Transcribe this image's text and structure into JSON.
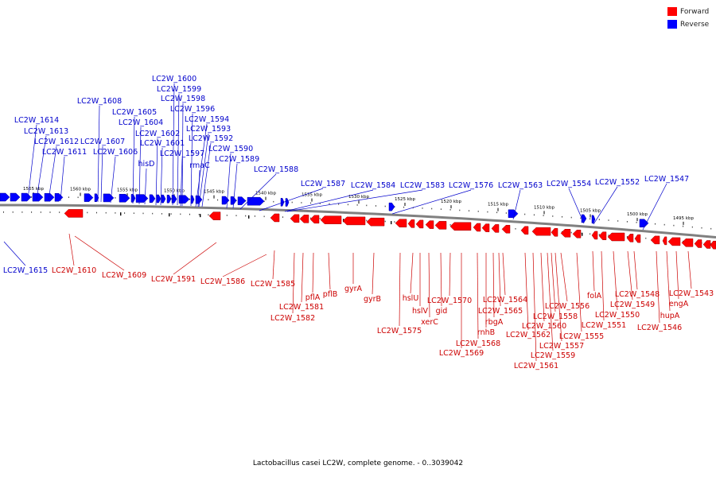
{
  "colors": {
    "forward": "#ff0000",
    "reverse": "#0000ff",
    "backbone": "#808080",
    "forward_label": "#cc0000",
    "reverse_label": "#0000cc"
  },
  "legend": {
    "forward": "Forward",
    "reverse": "Reverse"
  },
  "caption": "Lactobacillus casei LC2W, complete genome. - 0..3039042",
  "scale_ticks": [
    "1565 kbp",
    "1560 kbp",
    "1555 kbp",
    "1550 kbp",
    "1545 kbp",
    "1540 kbp",
    "1535 kbp",
    "1530 kbp",
    "1525 kbp",
    "1520 kbp",
    "1515 kbp",
    "1510 kbp",
    "1505 kbp",
    "1500 kbp",
    "1495 kbp"
  ],
  "reverse_labels": [
    "LC2W_1600",
    "LC2W_1599",
    "LC2W_1598",
    "LC2W_1608",
    "LC2W_1605",
    "LC2W_1596",
    "LC2W_1604",
    "LC2W_1594",
    "LC2W_1614",
    "LC2W_1593",
    "LC2W_1613",
    "LC2W_1602",
    "LC2W_1592",
    "LC2W_1612",
    "LC2W_1607",
    "LC2W_1601",
    "LC2W_1590",
    "LC2W_1611",
    "LC2W_1606",
    "LC2W_1597",
    "LC2W_1589",
    "hisD",
    "rmaC",
    "LC2W_1588",
    "LC2W_1587",
    "LC2W_1584",
    "LC2W_1583",
    "LC2W_1576",
    "LC2W_1563",
    "LC2W_1554",
    "LC2W_1552",
    "LC2W_1547",
    "LC2W_1615"
  ],
  "forward_labels": [
    "LC2W_1610",
    "LC2W_1609",
    "LC2W_1591",
    "LC2W_1586",
    "LC2W_1585",
    "LC2W_1581",
    "LC2W_1582",
    "pflA",
    "pflB",
    "gyrA",
    "gyrB",
    "LC2W_1575",
    "hslU",
    "hslV",
    "xerC",
    "gid",
    "LC2W_1570",
    "rnhB",
    "LC2W_1568",
    "LC2W_1569",
    "rbgA",
    "LC2W_1564",
    "LC2W_1565",
    "LC2W_1562",
    "LC2W_1560",
    "LC2W_1558",
    "LC2W_1556",
    "LC2W_1557",
    "LC2W_1559",
    "LC2W_1561",
    "LC2W_1555",
    "folA",
    "LC2W_1551",
    "LC2W_1550",
    "LC2W_1549",
    "LC2W_1548",
    "LC2W_1546",
    "hupA",
    "engA",
    "LC2W_1543"
  ]
}
